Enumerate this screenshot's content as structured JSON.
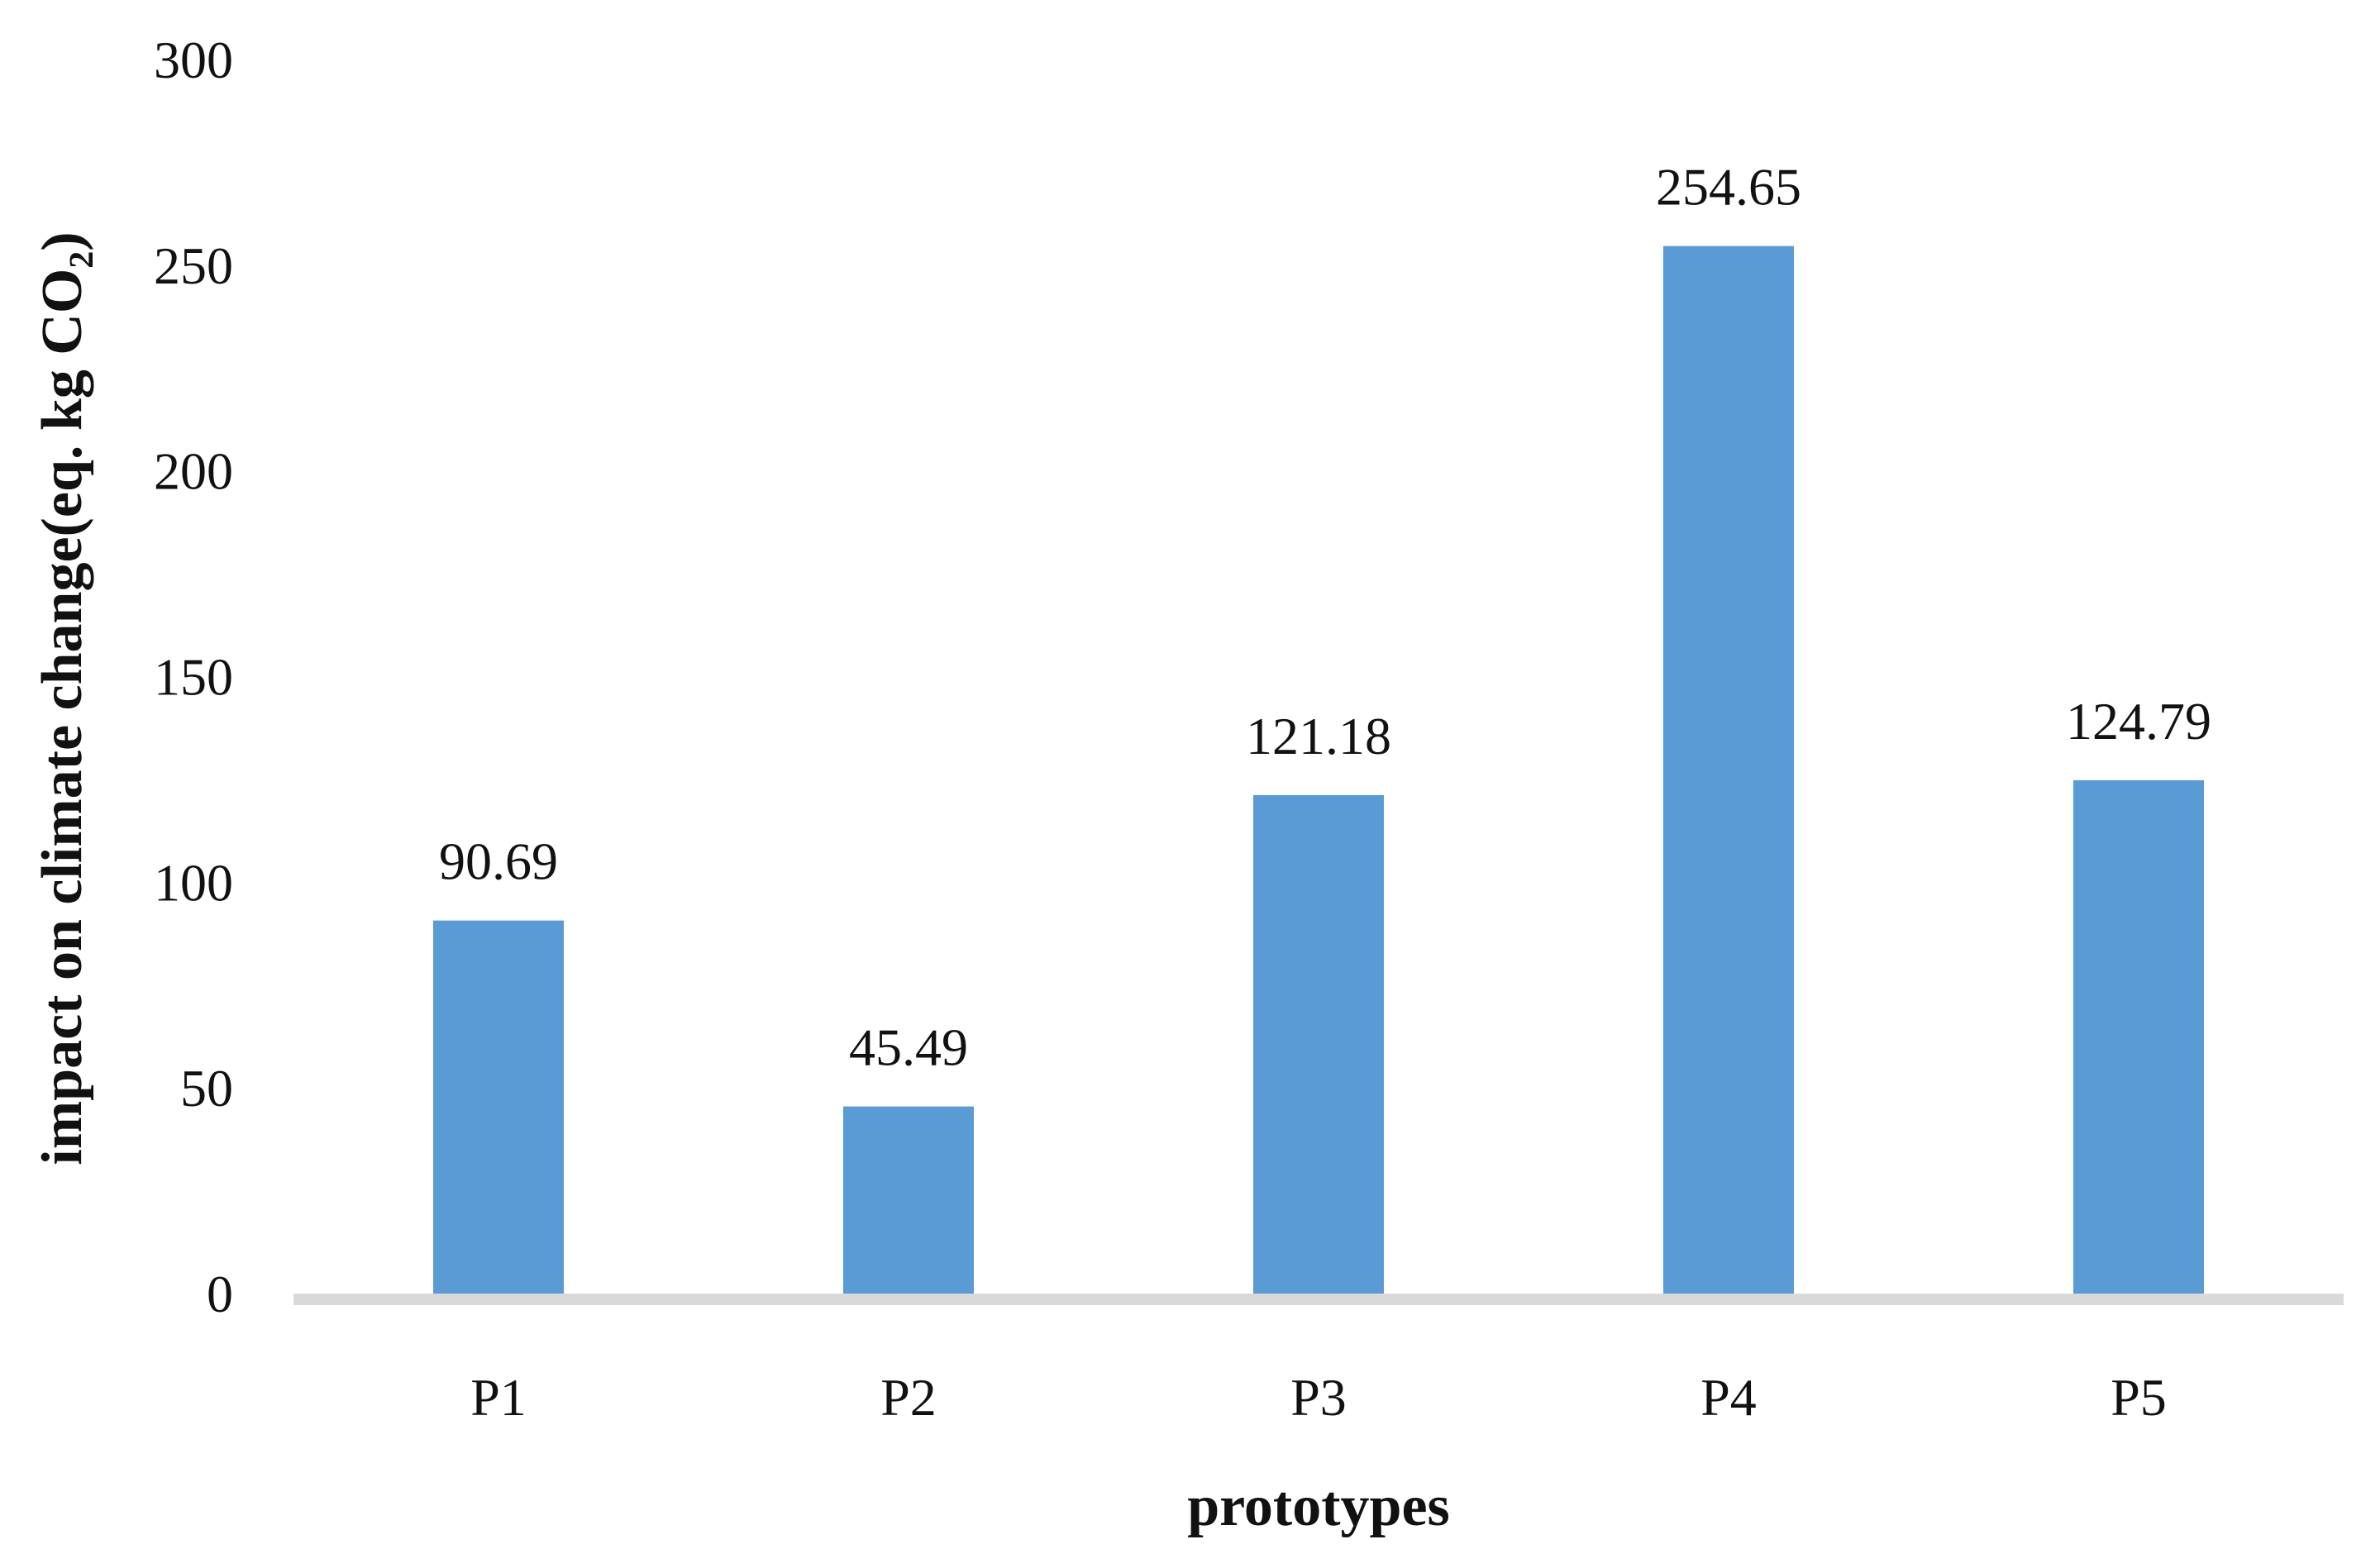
{
  "chart_data": {
    "type": "bar",
    "categories": [
      "P1",
      "P2",
      "P3",
      "P4",
      "P5"
    ],
    "values": [
      90.69,
      45.49,
      121.18,
      254.65,
      124.79
    ],
    "data_labels": [
      "90.69",
      "45.49",
      "121.18",
      "254.65",
      "124.79"
    ],
    "xlabel": "prototypes",
    "ylabel": "impact on climate change(eq. kg CO₂)",
    "ylim": [
      0,
      300
    ],
    "yticks": [
      0,
      50,
      100,
      150,
      200,
      250,
      300
    ],
    "ytick_labels": [
      "0",
      "50",
      "100",
      "150",
      "200",
      "250",
      "300"
    ],
    "grid": false,
    "legend": "none",
    "colors": {
      "bar": "#5b9bd5",
      "axis": "#d9d9d9"
    }
  }
}
